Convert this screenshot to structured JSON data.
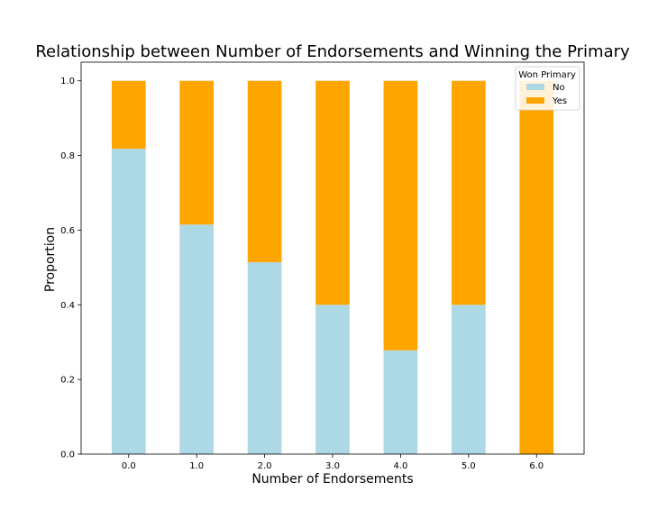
{
  "chart_data": {
    "type": "bar",
    "stacked": true,
    "title": "Relationship between Number of Endorsements and Winning the Primary",
    "xlabel": "Number of Endorsements",
    "ylabel": "Proportion",
    "categories": [
      "0.0",
      "1.0",
      "2.0",
      "3.0",
      "4.0",
      "5.0",
      "6.0"
    ],
    "ylim": [
      0,
      1.05
    ],
    "yticks": [
      "0.0",
      "0.2",
      "0.4",
      "0.6",
      "0.8",
      "1.0"
    ],
    "series": [
      {
        "name": "No",
        "color": "#add8e6",
        "values": [
          0.818,
          0.615,
          0.514,
          0.4,
          0.278,
          0.4,
          0.0
        ]
      },
      {
        "name": "Yes",
        "color": "#ffa500",
        "values": [
          0.182,
          0.385,
          0.486,
          0.6,
          0.722,
          0.6,
          1.0
        ]
      }
    ],
    "legend": {
      "title": "Won Primary",
      "position": "top-right"
    },
    "grid": false
  }
}
